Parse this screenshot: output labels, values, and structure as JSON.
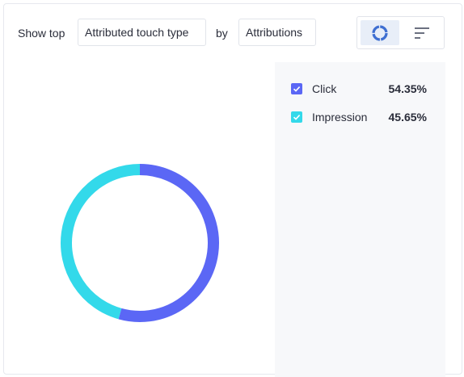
{
  "toolbar": {
    "show_top_label": "Show top",
    "dimension_select": "Attributed touch type",
    "by_label": "by",
    "metric_select": "Attributions"
  },
  "view_toggle": {
    "options": [
      {
        "icon": "donut-chart-icon",
        "active": true
      },
      {
        "icon": "sort-bars-icon",
        "active": false
      }
    ]
  },
  "colors": {
    "click": "#5b67f5",
    "impression": "#33d9ea",
    "toggle_active_icon": "#3f6fd1",
    "toggle_inactive_icon": "#6b7080"
  },
  "legend": {
    "items": [
      {
        "label": "Click",
        "value": "54.35%",
        "checked": true
      },
      {
        "label": "Impression",
        "value": "45.65%",
        "checked": true
      }
    ]
  },
  "chart_data": {
    "type": "pie",
    "categories": [
      "Click",
      "Impression"
    ],
    "values": [
      54.35,
      45.65
    ],
    "unit": "%",
    "colors": [
      "#5b67f5",
      "#33d9ea"
    ],
    "title": "",
    "legend_position": "right"
  }
}
